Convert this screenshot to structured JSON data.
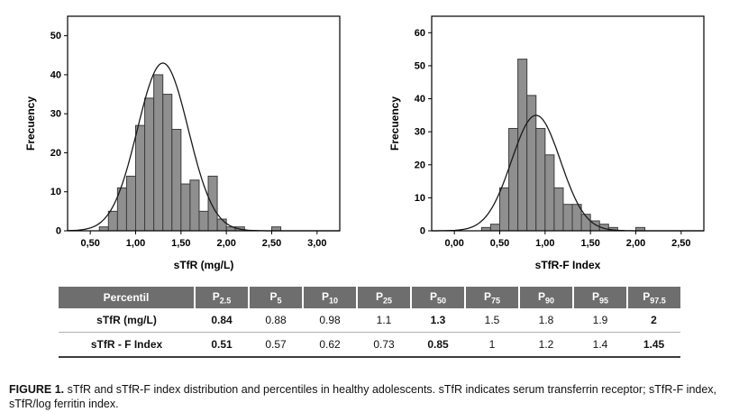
{
  "figure": {
    "caption_label": "FIGURE 1.",
    "caption_text": " sTfR and sTfR-F index distribution and percentiles in healthy adolescents. sTfR indicates serum transferrin receptor; sTfR-F index, sTfR/log ferritin index."
  },
  "colors": {
    "bar_fill": "#8f8f8f",
    "bar_stroke": "#3d3d3d",
    "curve": "#1a1a1a",
    "axis": "#000000",
    "table_header_bg": "#6e6e6e",
    "table_header_text": "#ffffff"
  },
  "chart_data": [
    {
      "type": "bar",
      "subtype": "histogram",
      "title": "",
      "xlabel": "sTfR (mg/L)",
      "ylabel": "Frecuency",
      "xlim": [
        0.25,
        3.25
      ],
      "ylim": [
        0,
        55
      ],
      "x_ticks": [
        0.5,
        1.0,
        1.5,
        2.0,
        2.5,
        3.0
      ],
      "x_tick_labels": [
        "0,50",
        "1,00",
        "1,50",
        "2,00",
        "2,50",
        "3,00"
      ],
      "y_ticks": [
        0,
        10,
        20,
        30,
        40,
        50
      ],
      "bin_width": 0.1,
      "bins": [
        [
          0.65,
          1
        ],
        [
          0.75,
          5
        ],
        [
          0.85,
          11
        ],
        [
          0.95,
          14
        ],
        [
          1.05,
          27
        ],
        [
          1.15,
          34
        ],
        [
          1.25,
          40
        ],
        [
          1.35,
          35
        ],
        [
          1.45,
          26
        ],
        [
          1.55,
          12
        ],
        [
          1.65,
          13
        ],
        [
          1.75,
          5
        ],
        [
          1.85,
          14
        ],
        [
          1.95,
          3
        ],
        [
          2.05,
          1
        ],
        [
          2.15,
          1
        ],
        [
          2.55,
          1
        ]
      ],
      "curve": {
        "mean": 1.3,
        "sd": 0.28,
        "peak": 43
      },
      "grid": false,
      "legend": "none"
    },
    {
      "type": "bar",
      "subtype": "histogram",
      "title": "",
      "xlabel": "sTfR-F Index",
      "ylabel": "Frecuency",
      "xlim": [
        -0.25,
        2.75
      ],
      "ylim": [
        0,
        65
      ],
      "x_ticks": [
        0.0,
        0.5,
        1.0,
        1.5,
        2.0,
        2.5
      ],
      "x_tick_labels": [
        "0,00",
        "0,50",
        "1,00",
        "1,50",
        "2,00",
        "2,50"
      ],
      "y_ticks": [
        0,
        10,
        20,
        30,
        40,
        50,
        60
      ],
      "bin_width": 0.1,
      "bins": [
        [
          0.35,
          1
        ],
        [
          0.45,
          2
        ],
        [
          0.55,
          13
        ],
        [
          0.65,
          31
        ],
        [
          0.75,
          52
        ],
        [
          0.85,
          41
        ],
        [
          0.95,
          31
        ],
        [
          1.05,
          23
        ],
        [
          1.15,
          13
        ],
        [
          1.25,
          8
        ],
        [
          1.35,
          8
        ],
        [
          1.45,
          5
        ],
        [
          1.55,
          3
        ],
        [
          1.65,
          2
        ],
        [
          1.75,
          1
        ],
        [
          2.05,
          1
        ]
      ],
      "curve": {
        "mean": 0.9,
        "sd": 0.27,
        "peak": 35
      },
      "grid": false,
      "legend": "none"
    }
  ],
  "table": {
    "header": [
      {
        "text": "Percentil",
        "sub": ""
      },
      {
        "text": "P",
        "sub": "2.5"
      },
      {
        "text": "P",
        "sub": "5"
      },
      {
        "text": "P",
        "sub": "10"
      },
      {
        "text": "P",
        "sub": "25"
      },
      {
        "text": "P",
        "sub": "50"
      },
      {
        "text": "P",
        "sub": "75"
      },
      {
        "text": "P",
        "sub": "90"
      },
      {
        "text": "P",
        "sub": "95"
      },
      {
        "text": "P",
        "sub": "97.5"
      }
    ],
    "rows": [
      {
        "label": "sTfR (mg/L)",
        "cells": [
          {
            "text": "0.84",
            "bold": true
          },
          {
            "text": "0.88",
            "bold": false
          },
          {
            "text": "0.98",
            "bold": false
          },
          {
            "text": "1.1",
            "bold": false
          },
          {
            "text": "1.3",
            "bold": true
          },
          {
            "text": "1.5",
            "bold": false
          },
          {
            "text": "1.8",
            "bold": false
          },
          {
            "text": "1.9",
            "bold": false
          },
          {
            "text": "2",
            "bold": true
          }
        ]
      },
      {
        "label": "sTfR - F Index",
        "cells": [
          {
            "text": "0.51",
            "bold": true
          },
          {
            "text": "0.57",
            "bold": false
          },
          {
            "text": "0.62",
            "bold": false
          },
          {
            "text": "0.73",
            "bold": false
          },
          {
            "text": "0.85",
            "bold": true
          },
          {
            "text": "1",
            "bold": false
          },
          {
            "text": "1.2",
            "bold": false
          },
          {
            "text": "1.4",
            "bold": false
          },
          {
            "text": "1.45",
            "bold": true
          }
        ]
      }
    ]
  }
}
